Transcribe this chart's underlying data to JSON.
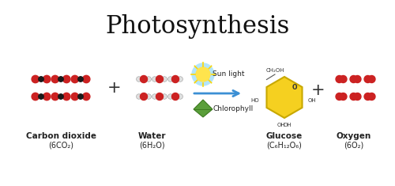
{
  "title": "Photosynthesis",
  "title_fontsize": 22,
  "background_color": "#ffffff",
  "labels": {
    "co2": "Carbon dioxide",
    "co2_formula": "(6CO₂)",
    "water": "Water",
    "water_formula": "(6H₂O)",
    "glucose": "Glucose",
    "glucose_formula": "(C₆H₁₂O₆)",
    "oxygen": "Oxygen",
    "oxygen_formula": "(6O₂)",
    "sunlight": "Sun light",
    "chlorophyll": "Chlorophyll"
  },
  "colors": {
    "red": "#cc2222",
    "black": "#1a1a1a",
    "white_atom": "#e0e0e0",
    "white_atom_border": "#aaaaaa",
    "glucose_fill": "#f5d020",
    "glucose_stroke": "#c8a800",
    "sun_yellow": "#FFE44D",
    "sun_glow": "#b3e5fc",
    "sun_ray": "#FFD700",
    "leaf_green": "#5a9e3a",
    "leaf_dark": "#3d7a20",
    "arrow_blue": "#3b8fd4",
    "plus_color": "#333333",
    "text_color": "#222222",
    "bg": "#ffffff"
  }
}
